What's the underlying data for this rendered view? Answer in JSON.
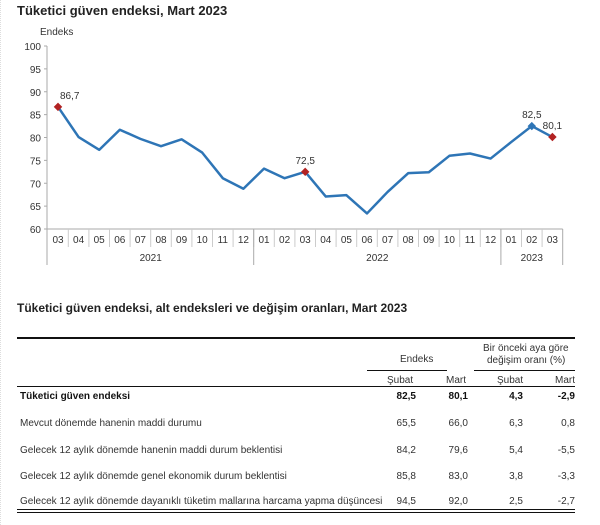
{
  "chart_data": {
    "type": "line",
    "title": "Tüketici güven endeksi, Mart 2023",
    "ylabel": "Endeks",
    "xlabel": "",
    "ylim": [
      60,
      100
    ],
    "yticks": [
      60,
      65,
      70,
      75,
      80,
      85,
      90,
      95,
      100
    ],
    "x": [
      "03",
      "04",
      "05",
      "06",
      "07",
      "08",
      "09",
      "10",
      "11",
      "12",
      "01",
      "02",
      "03",
      "04",
      "05",
      "06",
      "07",
      "08",
      "09",
      "10",
      "11",
      "12",
      "01",
      "02",
      "03"
    ],
    "years": [
      {
        "label": "2021",
        "span": 10
      },
      {
        "label": "2022",
        "span": 12
      },
      {
        "label": "2023",
        "span": 3
      }
    ],
    "series": [
      {
        "name": "Tüketici güven endeksi",
        "color": "#2e75b6",
        "values": [
          86.7,
          80.1,
          77.3,
          81.7,
          79.7,
          78.1,
          79.6,
          76.7,
          71.1,
          68.8,
          73.2,
          71.1,
          72.5,
          67.1,
          67.4,
          63.4,
          68.1,
          72.2,
          72.4,
          76.0,
          76.5,
          75.4,
          79.0,
          82.5,
          80.1
        ]
      }
    ],
    "annotations": [
      {
        "index": 0,
        "label": "86,7",
        "marker": "#b22222"
      },
      {
        "index": 12,
        "label": "72,5",
        "marker": "#b22222"
      },
      {
        "index": 23,
        "label": "82,5",
        "marker": "#2e75b6"
      },
      {
        "index": 24,
        "label": "80,1",
        "marker": "#b22222"
      }
    ],
    "grid": false
  },
  "table": {
    "title": "Tüketici güven endeksi, alt endeksleri ve değişim oranları, Mart 2023",
    "group_headers": [
      "Endeks",
      "Bir önceki aya göre",
      "değişim oranı (%)"
    ],
    "columns": [
      "Şubat",
      "Mart",
      "Şubat",
      "Mart"
    ],
    "rows": [
      {
        "label": "Tüketici güven endeksi",
        "bold": true,
        "values": [
          "82,5",
          "80,1",
          "4,3",
          "-2,9"
        ]
      },
      {
        "label": "Mevcut dönemde hanenin maddi durumu",
        "bold": false,
        "values": [
          "65,5",
          "66,0",
          "6,3",
          "0,8"
        ]
      },
      {
        "label": "Gelecek 12 aylık dönemde hanenin maddi durum beklentisi",
        "bold": false,
        "values": [
          "84,2",
          "79,6",
          "5,4",
          "-5,5"
        ]
      },
      {
        "label": "Gelecek 12 aylık dönemde genel ekonomik durum beklentisi",
        "bold": false,
        "values": [
          "85,8",
          "83,0",
          "3,8",
          "-3,3"
        ]
      },
      {
        "label": "Gelecek 12 aylık dönemde dayanıklı tüketim mallarına harcama yapma düşüncesi",
        "bold": false,
        "values": [
          "94,5",
          "92,0",
          "2,5",
          "-2,7"
        ]
      }
    ]
  }
}
